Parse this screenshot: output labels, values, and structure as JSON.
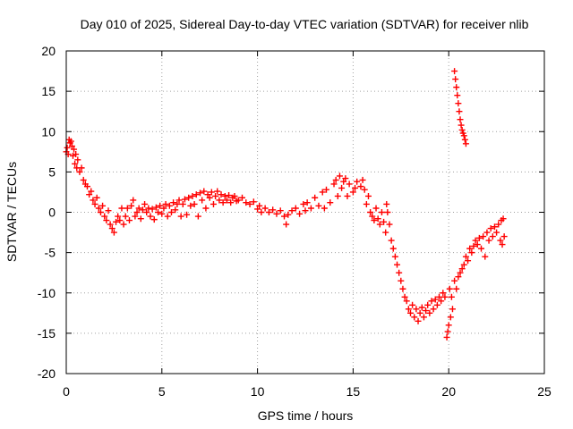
{
  "chart_data": {
    "type": "scatter",
    "title": "Day 010 of 2025, Sidereal Day-to-day VTEC variation (SDTVAR) for receiver nlib",
    "xlabel": "GPS time / hours",
    "ylabel": "SDTVAR / TECUs",
    "xlim": [
      0,
      25
    ],
    "ylim": [
      -20,
      20
    ],
    "xticks": [
      0,
      5,
      10,
      15,
      20,
      25
    ],
    "yticks": [
      -20,
      -15,
      -10,
      -5,
      0,
      5,
      10,
      15,
      20
    ],
    "grid": true,
    "marker": "+",
    "color": "#ff0000",
    "series": [
      {
        "name": "SDTVAR",
        "points": [
          [
            0.0,
            7.5
          ],
          [
            0.05,
            8.0
          ],
          [
            0.1,
            7.2
          ],
          [
            0.15,
            9.0
          ],
          [
            0.2,
            8.6
          ],
          [
            0.25,
            8.8
          ],
          [
            0.3,
            8.2
          ],
          [
            0.35,
            7.0
          ],
          [
            0.4,
            7.8
          ],
          [
            0.45,
            6.0
          ],
          [
            0.5,
            7.2
          ],
          [
            0.55,
            5.5
          ],
          [
            0.6,
            6.5
          ],
          [
            0.7,
            5.0
          ],
          [
            0.8,
            5.5
          ],
          [
            0.9,
            4.0
          ],
          [
            1.0,
            3.5
          ],
          [
            1.1,
            3.2
          ],
          [
            1.2,
            2.2
          ],
          [
            1.3,
            2.6
          ],
          [
            1.4,
            1.5
          ],
          [
            1.5,
            1.0
          ],
          [
            1.6,
            1.8
          ],
          [
            1.7,
            0.5
          ],
          [
            1.8,
            0.0
          ],
          [
            1.9,
            0.8
          ],
          [
            2.0,
            -0.5
          ],
          [
            2.1,
            -1.0
          ],
          [
            2.2,
            0.2
          ],
          [
            2.3,
            -1.5
          ],
          [
            2.4,
            -2.0
          ],
          [
            2.5,
            -2.5
          ],
          [
            2.6,
            -1.2
          ],
          [
            2.7,
            -0.5
          ],
          [
            2.8,
            -1.0
          ],
          [
            2.9,
            0.5
          ],
          [
            3.0,
            -1.5
          ],
          [
            3.1,
            -0.5
          ],
          [
            3.2,
            0.5
          ],
          [
            3.3,
            -1.0
          ],
          [
            3.4,
            0.8
          ],
          [
            3.5,
            1.5
          ],
          [
            3.6,
            -0.5
          ],
          [
            3.7,
            0.0
          ],
          [
            3.8,
            0.5
          ],
          [
            3.9,
            -0.8
          ],
          [
            4.0,
            0.3
          ],
          [
            4.1,
            1.0
          ],
          [
            4.2,
            0.0
          ],
          [
            4.3,
            0.5
          ],
          [
            4.4,
            -0.5
          ],
          [
            4.5,
            0.4
          ],
          [
            4.6,
            -0.9
          ],
          [
            4.7,
            0.6
          ],
          [
            4.8,
            0.0
          ],
          [
            4.9,
            0.8
          ],
          [
            5.0,
            -0.2
          ],
          [
            5.1,
            0.5
          ],
          [
            5.2,
            1.0
          ],
          [
            5.3,
            -0.5
          ],
          [
            5.4,
            0.8
          ],
          [
            5.5,
            0.0
          ],
          [
            5.6,
            1.2
          ],
          [
            5.7,
            0.3
          ],
          [
            5.8,
            1.0
          ],
          [
            5.9,
            1.5
          ],
          [
            6.0,
            -0.5
          ],
          [
            6.1,
            1.0
          ],
          [
            6.2,
            1.6
          ],
          [
            6.3,
            -0.3
          ],
          [
            6.4,
            1.8
          ],
          [
            6.5,
            0.8
          ],
          [
            6.6,
            2.0
          ],
          [
            6.7,
            1.0
          ],
          [
            6.8,
            2.2
          ],
          [
            6.9,
            -0.5
          ],
          [
            7.0,
            2.4
          ],
          [
            7.1,
            1.5
          ],
          [
            7.2,
            2.6
          ],
          [
            7.3,
            0.5
          ],
          [
            7.4,
            2.2
          ],
          [
            7.5,
            1.8
          ],
          [
            7.6,
            2.5
          ],
          [
            7.7,
            1.0
          ],
          [
            7.8,
            2.0
          ],
          [
            7.9,
            2.6
          ],
          [
            8.0,
            1.5
          ],
          [
            8.1,
            2.2
          ],
          [
            8.2,
            1.2
          ],
          [
            8.3,
            2.0
          ],
          [
            8.4,
            1.5
          ],
          [
            8.5,
            2.1
          ],
          [
            8.6,
            1.2
          ],
          [
            8.7,
            1.8
          ],
          [
            8.8,
            2.0
          ],
          [
            8.9,
            1.4
          ],
          [
            9.0,
            1.5
          ],
          [
            9.2,
            1.8
          ],
          [
            9.4,
            1.2
          ],
          [
            9.6,
            1.0
          ],
          [
            9.8,
            1.3
          ],
          [
            10.0,
            0.4
          ],
          [
            10.1,
            0.8
          ],
          [
            10.2,
            0.0
          ],
          [
            10.4,
            0.5
          ],
          [
            10.6,
            0.0
          ],
          [
            10.8,
            0.3
          ],
          [
            11.0,
            -0.2
          ],
          [
            11.2,
            0.2
          ],
          [
            11.4,
            -0.5
          ],
          [
            11.5,
            -1.5
          ],
          [
            11.6,
            -0.3
          ],
          [
            11.8,
            0.2
          ],
          [
            12.0,
            0.5
          ],
          [
            12.2,
            -0.2
          ],
          [
            12.4,
            1.0
          ],
          [
            12.5,
            0.2
          ],
          [
            12.6,
            1.2
          ],
          [
            12.8,
            0.5
          ],
          [
            13.0,
            1.8
          ],
          [
            13.2,
            0.8
          ],
          [
            13.4,
            2.5
          ],
          [
            13.5,
            0.5
          ],
          [
            13.6,
            2.8
          ],
          [
            13.8,
            1.2
          ],
          [
            14.0,
            3.5
          ],
          [
            14.1,
            4.0
          ],
          [
            14.2,
            2.0
          ],
          [
            14.3,
            4.5
          ],
          [
            14.4,
            3.0
          ],
          [
            14.5,
            3.8
          ],
          [
            14.6,
            4.2
          ],
          [
            14.7,
            2.0
          ],
          [
            14.8,
            3.5
          ],
          [
            15.0,
            2.5
          ],
          [
            15.1,
            3.0
          ],
          [
            15.2,
            3.8
          ],
          [
            15.4,
            3.2
          ],
          [
            15.5,
            4.0
          ],
          [
            15.6,
            2.8
          ],
          [
            15.7,
            1.0
          ],
          [
            15.8,
            2.0
          ],
          [
            15.9,
            0.0
          ],
          [
            16.0,
            -0.5
          ],
          [
            16.1,
            -1.0
          ],
          [
            16.2,
            0.5
          ],
          [
            16.3,
            -0.8
          ],
          [
            16.4,
            -1.5
          ],
          [
            16.5,
            0.0
          ],
          [
            16.6,
            -1.2
          ],
          [
            16.7,
            -2.5
          ],
          [
            16.75,
            1.0
          ],
          [
            16.8,
            0.0
          ],
          [
            16.9,
            -1.5
          ],
          [
            17.0,
            -3.5
          ],
          [
            17.1,
            -4.5
          ],
          [
            17.2,
            -5.5
          ],
          [
            17.3,
            -6.5
          ],
          [
            17.4,
            -7.5
          ],
          [
            17.5,
            -8.5
          ],
          [
            17.6,
            -9.5
          ],
          [
            17.7,
            -10.5
          ],
          [
            17.8,
            -11.0
          ],
          [
            17.9,
            -12.0
          ],
          [
            18.0,
            -12.5
          ],
          [
            18.1,
            -11.5
          ],
          [
            18.2,
            -13.0
          ],
          [
            18.3,
            -12.0
          ],
          [
            18.4,
            -13.5
          ],
          [
            18.5,
            -12.5
          ],
          [
            18.6,
            -11.8
          ],
          [
            18.7,
            -13.0
          ],
          [
            18.8,
            -12.2
          ],
          [
            18.9,
            -11.5
          ],
          [
            19.0,
            -12.5
          ],
          [
            19.1,
            -11.0
          ],
          [
            19.2,
            -12.0
          ],
          [
            19.3,
            -10.8
          ],
          [
            19.4,
            -11.5
          ],
          [
            19.5,
            -10.5
          ],
          [
            19.6,
            -11.0
          ],
          [
            19.7,
            -10.0
          ],
          [
            19.8,
            -10.5
          ],
          [
            19.9,
            -15.5
          ],
          [
            19.95,
            -14.8
          ],
          [
            20.0,
            -14.0
          ],
          [
            20.05,
            -9.5
          ],
          [
            20.1,
            -13.0
          ],
          [
            20.15,
            -10.5
          ],
          [
            20.2,
            -12.0
          ],
          [
            20.3,
            -8.5
          ],
          [
            20.4,
            -9.5
          ],
          [
            20.5,
            -8.0
          ],
          [
            20.6,
            -7.5
          ],
          [
            20.7,
            -7.0
          ],
          [
            20.8,
            -6.5
          ],
          [
            20.9,
            -5.5
          ],
          [
            21.0,
            -6.0
          ],
          [
            21.1,
            -4.5
          ],
          [
            21.2,
            -5.0
          ],
          [
            21.3,
            -4.2
          ],
          [
            21.4,
            -3.5
          ],
          [
            21.5,
            -4.0
          ],
          [
            21.6,
            -3.2
          ],
          [
            21.7,
            -4.5
          ],
          [
            21.8,
            -3.0
          ],
          [
            21.9,
            -5.5
          ],
          [
            22.0,
            -2.5
          ],
          [
            22.1,
            -3.5
          ],
          [
            22.2,
            -2.0
          ],
          [
            22.3,
            -3.0
          ],
          [
            22.4,
            -1.8
          ],
          [
            22.5,
            -2.5
          ],
          [
            22.6,
            -1.5
          ],
          [
            22.7,
            -3.5
          ],
          [
            22.75,
            -1.0
          ],
          [
            22.8,
            -4.0
          ],
          [
            22.85,
            -0.8
          ],
          [
            22.9,
            -3.0
          ],
          [
            20.3,
            17.5
          ],
          [
            20.35,
            16.5
          ],
          [
            20.4,
            15.5
          ],
          [
            20.45,
            14.5
          ],
          [
            20.5,
            13.5
          ],
          [
            20.55,
            12.5
          ],
          [
            20.6,
            11.5
          ],
          [
            20.65,
            10.8
          ],
          [
            20.7,
            10.2
          ],
          [
            20.75,
            9.8
          ],
          [
            20.8,
            9.5
          ],
          [
            20.85,
            9.0
          ],
          [
            20.9,
            8.5
          ]
        ]
      }
    ]
  }
}
